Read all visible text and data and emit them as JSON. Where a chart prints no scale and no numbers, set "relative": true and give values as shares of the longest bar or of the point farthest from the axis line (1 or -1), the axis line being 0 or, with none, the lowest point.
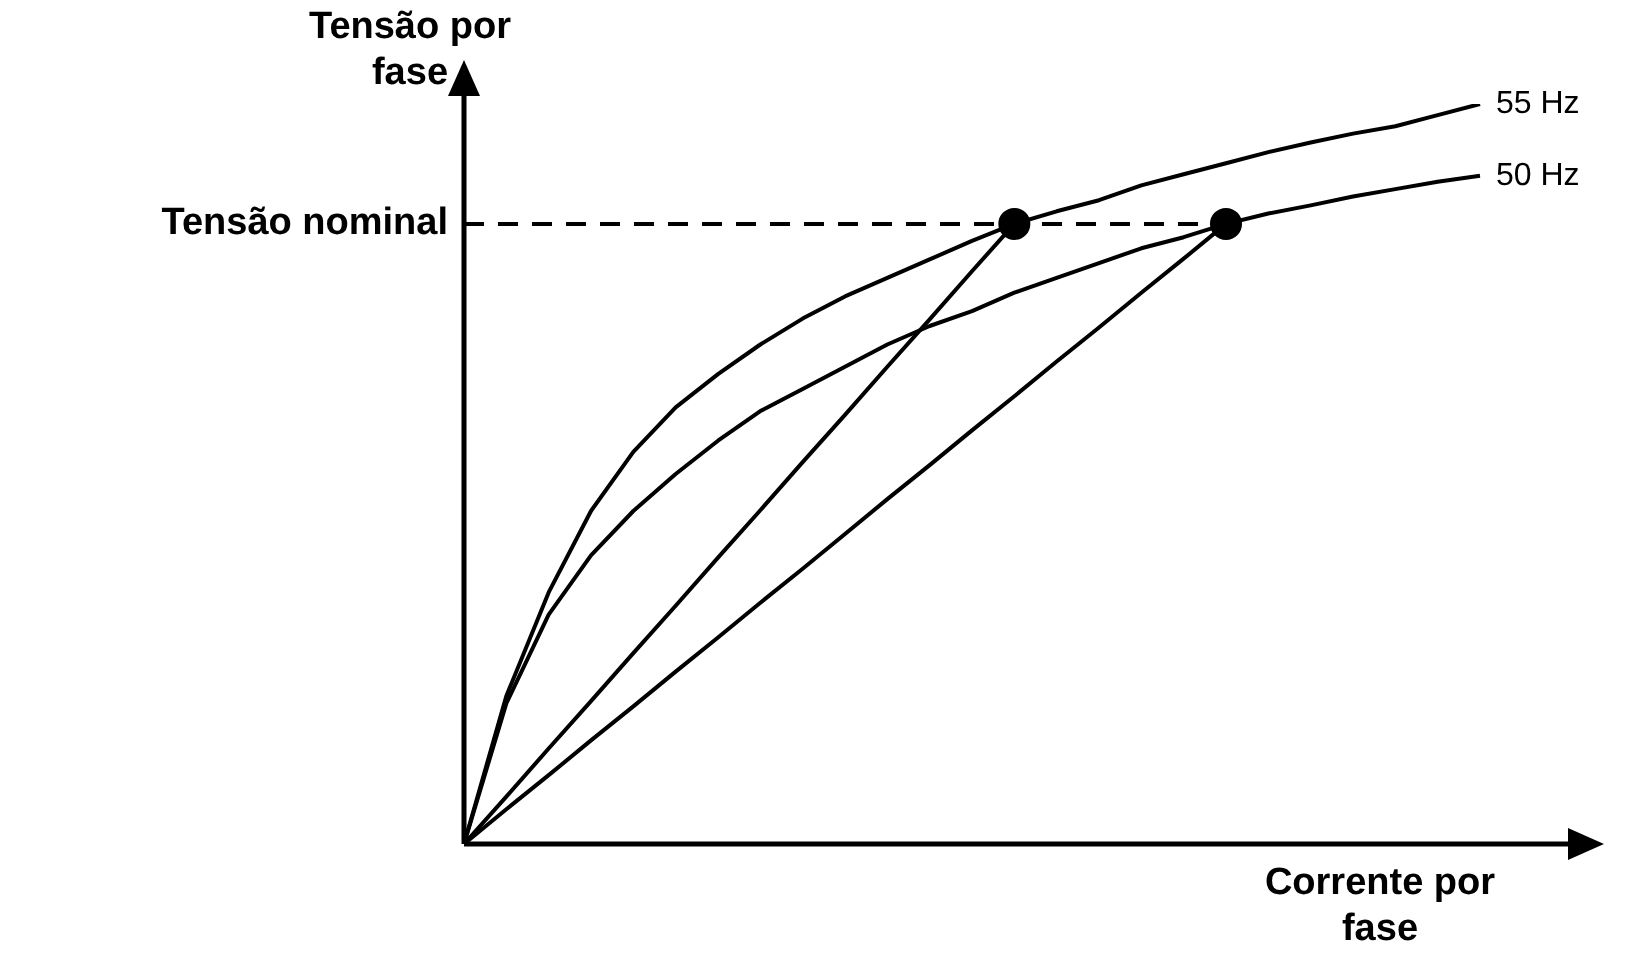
{
  "chart_data": {
    "type": "line",
    "relative": true,
    "xlabel": "Corrente por fase",
    "ylabel": "Tensão por fase",
    "legend": false,
    "marker": "none",
    "categories": [
      null,
      null,
      null,
      null,
      null,
      null,
      null,
      null,
      null,
      null,
      null,
      null,
      null,
      null,
      null,
      null,
      null,
      null,
      null,
      null,
      null,
      null,
      null,
      null,
      null
    ],
    "series": [
      {
        "name": "55 Hz",
        "color": "#000000",
        "values": [
          0,
          0.2,
          0.34,
          0.45,
          0.53,
          0.59,
          0.635,
          0.675,
          0.71,
          0.74,
          0.765,
          0.79,
          0.815,
          0.838,
          0.855,
          0.87,
          0.89,
          0.905,
          0.92,
          0.935,
          0.948,
          0.96,
          0.97,
          0.985,
          1
        ]
      },
      {
        "name": "50 Hz",
        "color": "#000000",
        "values": [
          0,
          0.19,
          0.31,
          0.39,
          0.45,
          0.5,
          0.545,
          0.585,
          0.615,
          0.645,
          0.675,
          0.7,
          0.72,
          0.745,
          0.765,
          0.785,
          0.805,
          0.82,
          0.838,
          0.852,
          0.863,
          0.875,
          0.885,
          0.895,
          0.903
        ]
      },
      {
        "color": "#000000",
        "values": [
          0,
          0.064,
          0.129,
          0.193,
          0.258,
          0.322,
          0.387,
          0.451,
          0.516,
          0.58,
          0.645,
          0.709,
          0.774,
          0.838,
          null,
          null,
          null,
          null,
          null,
          null,
          null,
          null,
          null,
          null,
          null
        ]
      },
      {
        "color": "#000000",
        "values": [
          0,
          0.047,
          0.093,
          0.14,
          0.186,
          0.233,
          0.279,
          0.326,
          0.372,
          0.419,
          0.466,
          0.512,
          0.559,
          0.605,
          0.652,
          0.698,
          0.745,
          0.791,
          0.838,
          null,
          null,
          null,
          null,
          null,
          null
        ]
      },
      {
        "name": "Tensão nominal",
        "color": "#000000",
        "line_style": "dashed",
        "values": [
          0.838,
          0.838,
          0.838,
          0.838,
          0.838,
          0.838,
          0.838,
          0.838,
          0.838,
          0.838,
          0.838,
          0.838,
          0.838,
          0.838,
          0.838,
          0.838,
          0.838,
          0.838,
          0.838,
          null,
          null,
          null,
          null,
          null,
          null
        ]
      },
      {
        "color": "#000000",
        "marker": "circle",
        "values": [
          null,
          null,
          null,
          null,
          null,
          null,
          null,
          null,
          null,
          null,
          null,
          null,
          null,
          0.838,
          null,
          null,
          null,
          null,
          null,
          null,
          null,
          null,
          null,
          null,
          null
        ]
      },
      {
        "color": "#000000",
        "marker": "circle",
        "values": [
          null,
          null,
          null,
          null,
          null,
          null,
          null,
          null,
          null,
          null,
          null,
          null,
          null,
          null,
          null,
          null,
          null,
          null,
          0.838,
          null,
          null,
          null,
          null,
          null,
          null
        ]
      }
    ]
  }
}
